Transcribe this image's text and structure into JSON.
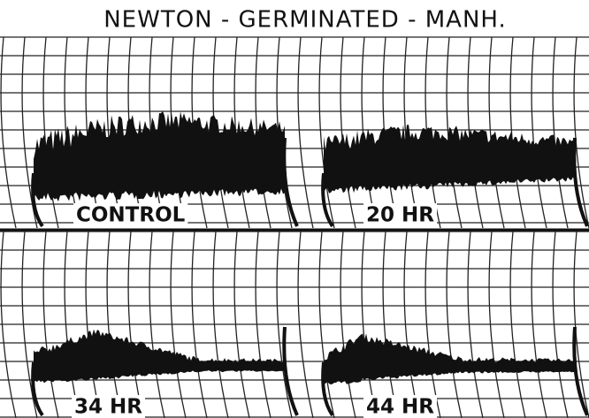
{
  "title": "NEWTON - GERMINATED - MANH.",
  "panels": [
    {
      "label": "CONTROL"
    },
    {
      "label": "20 HR"
    },
    {
      "label": "34 HR"
    },
    {
      "label": "44 HR"
    }
  ]
}
